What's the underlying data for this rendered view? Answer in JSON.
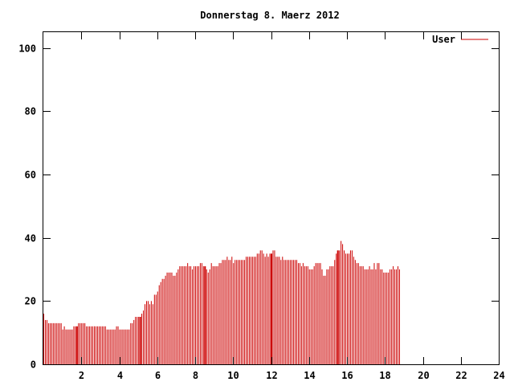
{
  "chart_data": {
    "type": "bar",
    "title": "Donnerstag 8. Maerz 2012",
    "xlabel": "",
    "ylabel": "",
    "xlim": [
      0,
      24
    ],
    "ylim": [
      0,
      105
    ],
    "x_ticks": [
      2,
      4,
      6,
      8,
      10,
      12,
      14,
      16,
      18,
      20,
      22,
      24
    ],
    "y_ticks": [
      0,
      20,
      40,
      60,
      80,
      100
    ],
    "grid": false,
    "legend_position": "top-right",
    "series": [
      {
        "name": "User",
        "color": "#cc0000",
        "interval_minutes": 5,
        "values": [
          16,
          14,
          14,
          13,
          13,
          13,
          13,
          13,
          13,
          13,
          13,
          13,
          11,
          12,
          11,
          11,
          11,
          11,
          11,
          12,
          12,
          12,
          13,
          13,
          13,
          13,
          13,
          12,
          12,
          12,
          12,
          12,
          12,
          12,
          12,
          12,
          12,
          12,
          12,
          12,
          11,
          11,
          11,
          11,
          11,
          11,
          12,
          12,
          11,
          11,
          11,
          11,
          11,
          11,
          11,
          13,
          13,
          14,
          15,
          15,
          15,
          15,
          16,
          17,
          19,
          20,
          20,
          19,
          20,
          19,
          22,
          22,
          23,
          25,
          26,
          27,
          27,
          28,
          29,
          29,
          29,
          29,
          28,
          28,
          29,
          30,
          31,
          31,
          31,
          31,
          31,
          32,
          31,
          31,
          30,
          31,
          31,
          31,
          31,
          32,
          32,
          31,
          31,
          30,
          29,
          30,
          32,
          31,
          31,
          31,
          31,
          32,
          32,
          33,
          33,
          33,
          34,
          33,
          33,
          34,
          32,
          33,
          33,
          33,
          33,
          33,
          33,
          33,
          34,
          34,
          34,
          34,
          34,
          34,
          34,
          35,
          35,
          36,
          36,
          35,
          34,
          35,
          34,
          35,
          35,
          36,
          36,
          34,
          34,
          34,
          33,
          34,
          33,
          33,
          33,
          33,
          33,
          33,
          33,
          33,
          33,
          32,
          32,
          31,
          32,
          31,
          31,
          31,
          30,
          30,
          30,
          31,
          32,
          32,
          32,
          32,
          30,
          28,
          28,
          30,
          30,
          31,
          31,
          31,
          33,
          35,
          36,
          36,
          39,
          38,
          36,
          35,
          35,
          35,
          36,
          36,
          34,
          33,
          32,
          32,
          31,
          31,
          31,
          30,
          30,
          30,
          31,
          30,
          30,
          32,
          30,
          32,
          32,
          30,
          30,
          29,
          29,
          29,
          29,
          30,
          30,
          31,
          30,
          30,
          31,
          30
        ]
      }
    ],
    "highlighted_values_at_hours": [
      1.75,
      5.1,
      8.5,
      12.0,
      15.5,
      18.9
    ]
  }
}
